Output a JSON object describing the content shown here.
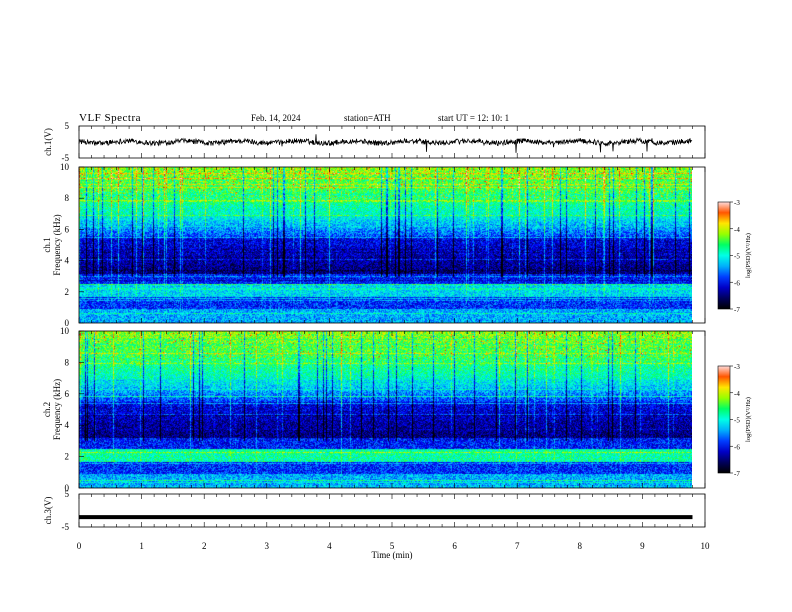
{
  "header": {
    "title": "VLF  Spectra",
    "date": "Feb. 14, 2024",
    "station": "station=ATH",
    "start": "start  UT  =    12: 10: 1"
  },
  "chart_data": [
    {
      "type": "line",
      "panel": "ch1-waveform",
      "ylabel": "ch.1(V)",
      "ylim": [
        -5,
        5
      ],
      "yticks": [
        "5",
        "-5"
      ],
      "xlim": [
        0,
        10
      ],
      "trace": "noisy signal fluctuating near 0 V"
    },
    {
      "type": "heatmap",
      "panel": "ch1-spectrogram",
      "ylabel": "ch.1\nFrequency (kHz)",
      "ylabel_lines": [
        "ch.1",
        "Frequency  (kHz)"
      ],
      "ylim": [
        0,
        10
      ],
      "yticks": [
        "0",
        "2",
        "4",
        "6",
        "8",
        "10"
      ],
      "xlim": [
        0,
        9.8
      ],
      "colorbar": {
        "label": "log(PSD)(V²/Hz)",
        "range": [
          -7,
          -3
        ],
        "ticks": [
          "-3",
          "-4",
          "-5",
          "-6",
          "-7"
        ]
      }
    },
    {
      "type": "heatmap",
      "panel": "ch2-spectrogram",
      "ylabel": "ch.2\nFrequency (kHz)",
      "ylabel_lines": [
        "ch.2",
        "Frequency  (kHz)"
      ],
      "ylim": [
        0,
        10
      ],
      "yticks": [
        "0",
        "2",
        "4",
        "6",
        "8",
        "10"
      ],
      "xlim": [
        0,
        9.8
      ],
      "colorbar": {
        "label": "log(PSD)(V²/Hz)",
        "range": [
          -7,
          -3
        ],
        "ticks": [
          "-3",
          "-4",
          "-5",
          "-6",
          "-7"
        ]
      }
    },
    {
      "type": "line",
      "panel": "ch3-waveform",
      "ylabel": "ch.3(V)",
      "ylim": [
        -5,
        5
      ],
      "yticks": [
        "5",
        "-5"
      ],
      "value": -2,
      "xlim": [
        0,
        9.8
      ]
    }
  ],
  "xaxis": {
    "label": "Time  (min)",
    "range": [
      0,
      10
    ],
    "ticks": [
      "0",
      "1",
      "2",
      "3",
      "4",
      "5",
      "6",
      "7",
      "8",
      "9",
      "10"
    ]
  },
  "colors": {
    "colormap": [
      "#000000",
      "#00007f",
      "#0000ff",
      "#00bfff",
      "#00ffff",
      "#00ff7f",
      "#7fff00",
      "#ffff00",
      "#ffbf00",
      "#ff0000",
      "#ff8080",
      "#ffffff"
    ]
  }
}
